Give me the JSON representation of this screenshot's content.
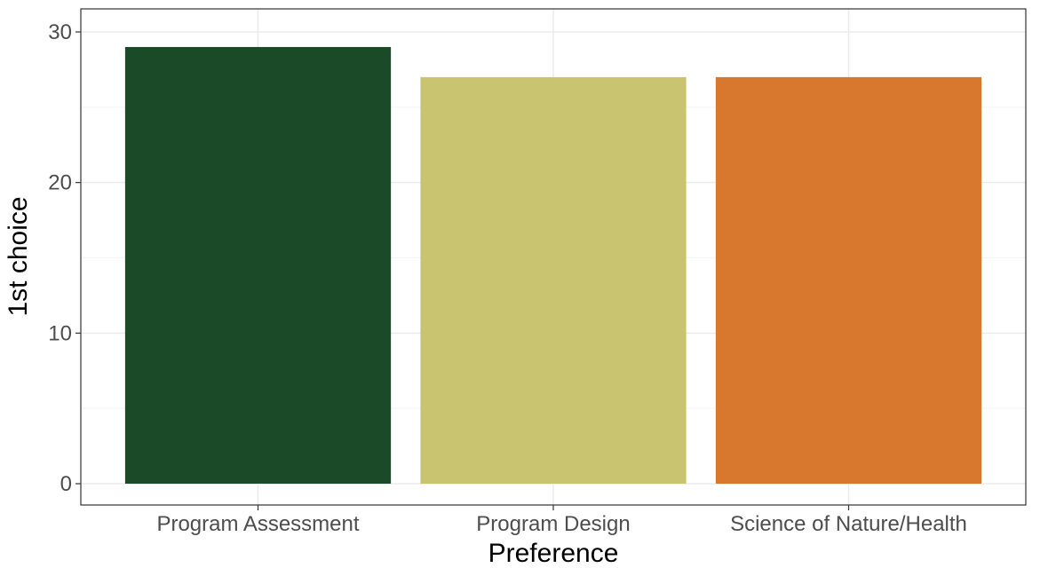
{
  "chart_data": {
    "type": "bar",
    "categories": [
      "Program Assessment",
      "Program Design",
      "Science of Nature/Health"
    ],
    "values": [
      29,
      27,
      27
    ],
    "colors": [
      "#1b4a29",
      "#c8c470",
      "#d8782e"
    ],
    "title": "",
    "xlabel": "Preference",
    "ylabel": "1st choice",
    "ylim": [
      0,
      30.3
    ],
    "yticks": [
      0,
      10,
      20,
      30
    ],
    "grid": true,
    "legend": "none",
    "theme": {
      "panel_border": "#333333",
      "major_grid": "#ebebeb",
      "minor_grid": "#f5f5f5",
      "tick_color": "#333333"
    }
  }
}
